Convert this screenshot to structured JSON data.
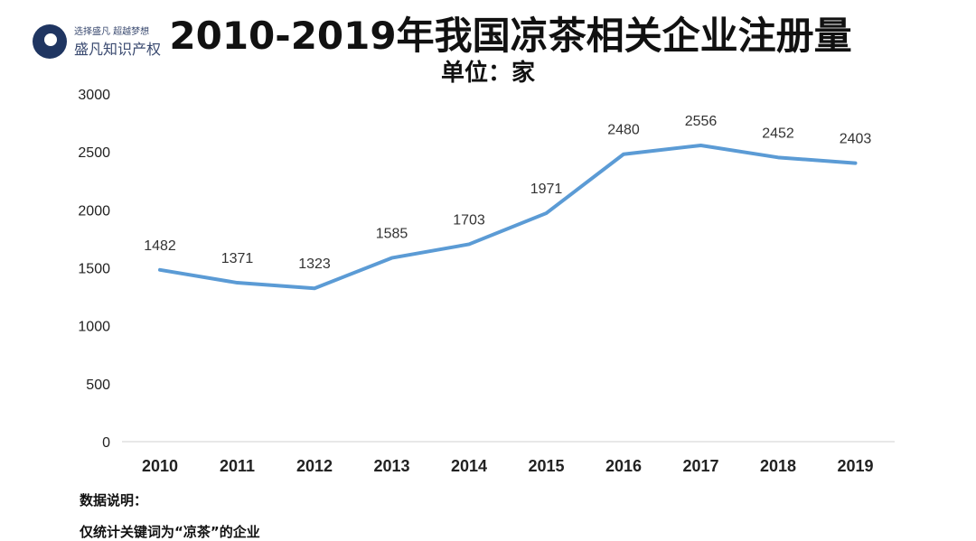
{
  "logo": {
    "slogan": "选择盛凡 超越梦想",
    "name": "盛凡知识产权"
  },
  "chart_data": {
    "type": "line",
    "title": "2010-2019年我国凉茶相关企业注册量",
    "subtitle": "单位：家",
    "categories": [
      "2010",
      "2011",
      "2012",
      "2013",
      "2014",
      "2015",
      "2016",
      "2017",
      "2018",
      "2019"
    ],
    "values": [
      1482,
      1371,
      1323,
      1585,
      1703,
      1971,
      2480,
      2556,
      2452,
      2403
    ],
    "ylim": [
      0,
      3000
    ],
    "yticks": [
      0,
      500,
      1000,
      1500,
      2000,
      2500,
      3000
    ],
    "grid": false,
    "line_color": "#5b9bd5",
    "data_labels": true
  },
  "notes": {
    "heading": "数据说明：",
    "text": "仅统计关键词为“凉茶”的企业"
  }
}
